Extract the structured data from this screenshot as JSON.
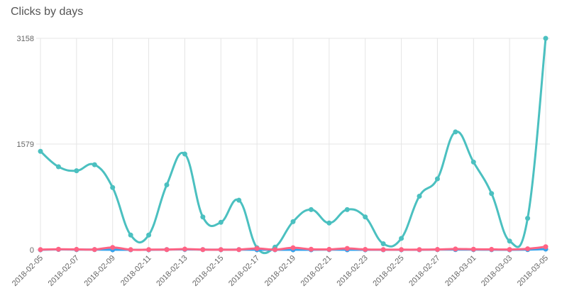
{
  "chart_data": {
    "type": "line",
    "title": "Clicks by days",
    "xlabel": "",
    "ylabel": "",
    "ylim": [
      0,
      3158
    ],
    "y_ticks": [
      0,
      1579,
      3158
    ],
    "grid": true,
    "x": [
      "2018-02-05",
      "2018-02-06",
      "2018-02-07",
      "2018-02-08",
      "2018-02-09",
      "2018-02-10",
      "2018-02-11",
      "2018-02-12",
      "2018-02-13",
      "2018-02-14",
      "2018-02-15",
      "2018-02-16",
      "2018-02-17",
      "2018-02-18",
      "2018-02-19",
      "2018-02-20",
      "2018-02-21",
      "2018-02-22",
      "2018-02-23",
      "2018-02-24",
      "2018-02-25",
      "2018-02-26",
      "2018-02-27",
      "2018-02-28",
      "2018-03-01",
      "2018-03-02",
      "2018-03-03",
      "2018-03-04",
      "2018-03-05"
    ],
    "x_tick_labels": [
      "2018-02-05",
      "2018-02-07",
      "2018-02-09",
      "2018-02-11",
      "2018-02-13",
      "2018-02-15",
      "2018-02-17",
      "2018-02-19",
      "2018-02-21",
      "2018-02-23",
      "2018-02-25",
      "2018-02-27",
      "2018-03-01",
      "2018-03-03",
      "2018-03-05"
    ],
    "series": [
      {
        "color": "#4bc0c0",
        "values": [
          1470,
          1240,
          1180,
          1270,
          930,
          220,
          220,
          970,
          1430,
          490,
          410,
          740,
          30,
          40,
          420,
          600,
          400,
          600,
          490,
          90,
          170,
          800,
          1060,
          1760,
          1310,
          840,
          130,
          470,
          3158
        ]
      },
      {
        "color": "#36a2eb",
        "values": [
          0,
          5,
          3,
          2,
          0,
          0,
          0,
          3,
          5,
          2,
          1,
          2,
          0,
          0,
          0,
          0,
          2,
          0,
          0,
          0,
          0,
          0,
          2,
          3,
          2,
          1,
          0,
          2,
          10
        ]
      },
      {
        "color": "#ff6384",
        "values": [
          2,
          8,
          6,
          4,
          35,
          2,
          2,
          3,
          10,
          3,
          2,
          3,
          20,
          2,
          30,
          8,
          6,
          20,
          5,
          2,
          2,
          2,
          5,
          12,
          8,
          6,
          4,
          15,
          45
        ]
      }
    ]
  }
}
